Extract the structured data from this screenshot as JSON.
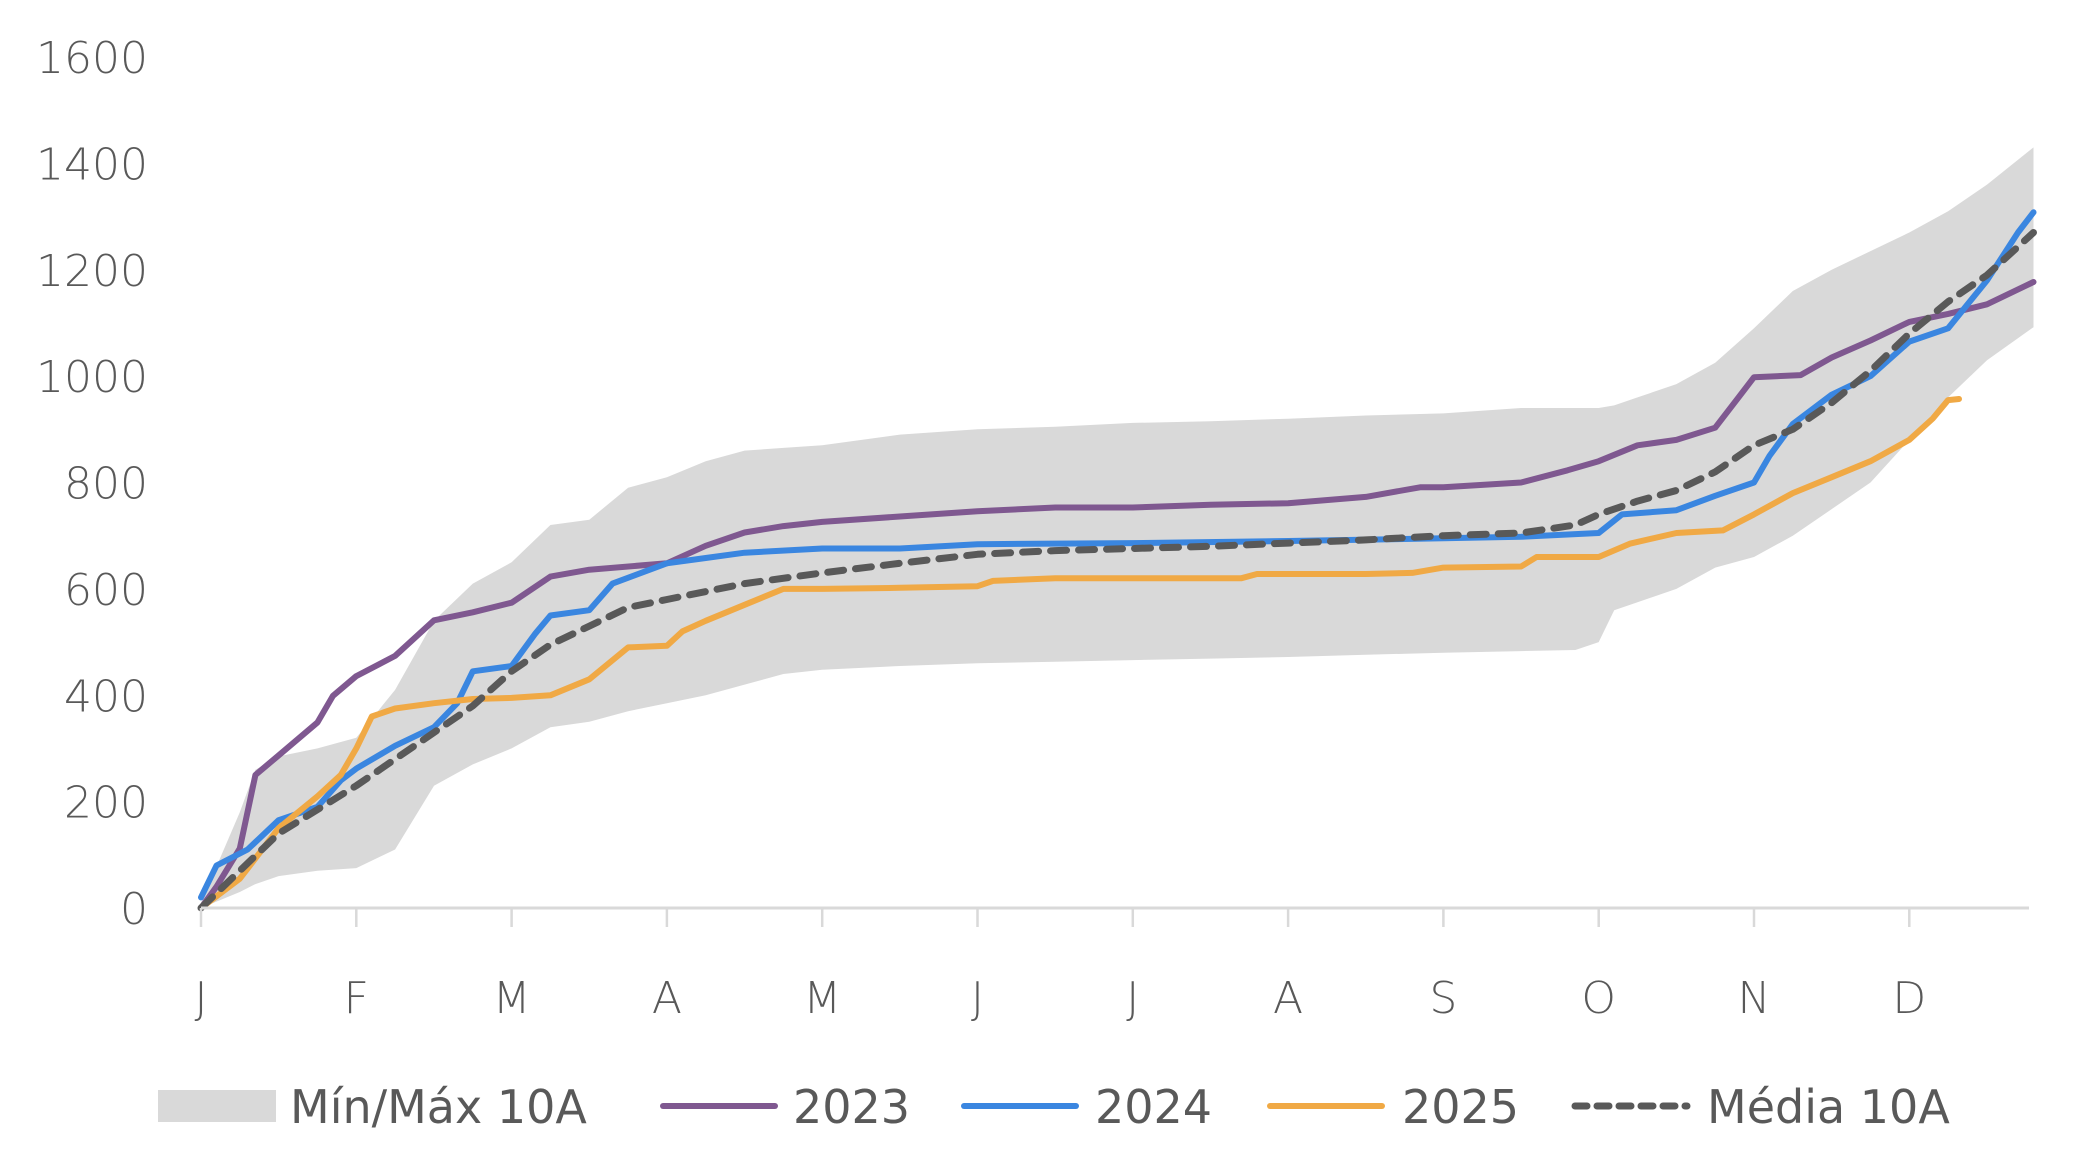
{
  "chart_data": {
    "type": "line",
    "title": "",
    "xlabel": "",
    "ylabel": "",
    "ylim": [
      0,
      1600
    ],
    "yticks": [
      0,
      200,
      400,
      600,
      800,
      1000,
      1200,
      1400,
      1600
    ],
    "ytick_labels": [
      "0",
      "200",
      "400",
      "600",
      "800",
      "1000",
      "1200",
      "1400",
      "1600"
    ],
    "xlim_months": [
      0,
      11.8
    ],
    "categories": [
      "J",
      "F",
      "M",
      "A",
      "M",
      "J",
      "J",
      "A",
      "S",
      "O",
      "N",
      "D"
    ],
    "grid": false,
    "legend_position": "bottom",
    "x_unit": "month index (0 = start of January)",
    "band": {
      "name": "Mín/Máx 10A",
      "color": "#d9d9d9",
      "x": [
        0,
        0.25,
        0.35,
        0.5,
        0.75,
        1.0,
        1.25,
        1.5,
        1.75,
        2.0,
        2.25,
        2.5,
        2.75,
        3.0,
        3.25,
        3.5,
        3.75,
        4.0,
        4.5,
        5.0,
        5.5,
        6.0,
        6.5,
        7.0,
        7.5,
        8.0,
        8.5,
        8.85,
        9.0,
        9.1,
        9.25,
        9.5,
        9.75,
        10.0,
        10.25,
        10.5,
        10.75,
        11.0,
        11.25,
        11.5,
        11.8
      ],
      "max": [
        10,
        180,
        260,
        285,
        300,
        320,
        410,
        540,
        610,
        650,
        720,
        730,
        790,
        810,
        840,
        860,
        865,
        870,
        890,
        900,
        905,
        912,
        915,
        920,
        926,
        930,
        940,
        940,
        940,
        945,
        960,
        985,
        1025,
        1090,
        1160,
        1200,
        1235,
        1270,
        1310,
        1360,
        1430
      ],
      "min": [
        0,
        30,
        45,
        60,
        70,
        75,
        110,
        230,
        270,
        300,
        340,
        350,
        370,
        385,
        400,
        420,
        440,
        448,
        455,
        460,
        463,
        466,
        469,
        472,
        476,
        480,
        483,
        485,
        500,
        560,
        575,
        600,
        640,
        660,
        700,
        750,
        800,
        880,
        960,
        1030,
        1092
      ]
    },
    "series": [
      {
        "name": "2023",
        "color": "#7f5890",
        "dashed": false,
        "x": [
          0,
          0.1,
          0.25,
          0.35,
          0.5,
          0.75,
          0.85,
          1.0,
          1.25,
          1.5,
          1.75,
          2.0,
          2.25,
          2.5,
          3.0,
          3.25,
          3.5,
          3.75,
          4.0,
          4.5,
          5.0,
          5.5,
          6.0,
          6.5,
          7.0,
          7.5,
          7.85,
          8.0,
          8.5,
          8.8,
          9.0,
          9.25,
          9.5,
          9.75,
          9.9,
          10.0,
          10.3,
          10.5,
          10.75,
          11.0,
          11.25,
          11.5,
          11.75,
          11.8
        ],
        "values": [
          0,
          40,
          112,
          250,
          287,
          349,
          399,
          436,
          474,
          541,
          556,
          574,
          623,
          636,
          648,
          681,
          706,
          718,
          726,
          736,
          746,
          753,
          753,
          758,
          761,
          773,
          791,
          791,
          800,
          823,
          840,
          870,
          880,
          903,
          960,
          998,
          1002,
          1035,
          1067,
          1102,
          1117,
          1135,
          1170,
          1177
        ]
      },
      {
        "name": "2024",
        "color": "#3a86e0",
        "dashed": false,
        "x": [
          0,
          0.1,
          0.3,
          0.5,
          0.75,
          0.9,
          1.0,
          1.25,
          1.5,
          1.65,
          1.75,
          2.0,
          2.15,
          2.25,
          2.5,
          2.65,
          3.0,
          3.25,
          3.5,
          4.0,
          4.5,
          5.0,
          6.0,
          7.0,
          8.0,
          8.5,
          9.0,
          9.15,
          9.5,
          9.75,
          10.0,
          10.1,
          10.25,
          10.5,
          10.75,
          11.0,
          11.25,
          11.5,
          11.7,
          11.8
        ],
        "values": [
          20,
          80,
          110,
          165,
          190,
          240,
          262,
          305,
          340,
          385,
          445,
          455,
          515,
          550,
          560,
          610,
          648,
          658,
          668,
          676,
          676,
          684,
          686,
          690,
          695,
          698,
          705,
          740,
          748,
          775,
          800,
          850,
          910,
          965,
          1000,
          1065,
          1090,
          1180,
          1270,
          1308
        ]
      },
      {
        "name": "2025",
        "color": "#f0a945",
        "dashed": false,
        "x": [
          0,
          0.25,
          0.5,
          0.75,
          0.9,
          1.0,
          1.1,
          1.25,
          1.5,
          1.75,
          2.0,
          2.25,
          2.5,
          2.75,
          3.0,
          3.1,
          3.25,
          3.5,
          3.75,
          4.0,
          4.5,
          5.0,
          5.1,
          5.5,
          6.0,
          6.7,
          6.8,
          7.5,
          7.8,
          8.0,
          8.5,
          8.6,
          9.0,
          9.2,
          9.5,
          9.8,
          10.0,
          10.25,
          10.5,
          10.75,
          11.0,
          11.15,
          11.25,
          11.32
        ],
        "values": [
          0,
          55,
          150,
          210,
          250,
          300,
          360,
          375,
          385,
          393,
          395,
          400,
          430,
          490,
          493,
          520,
          540,
          570,
          600,
          600,
          602,
          605,
          615,
          620,
          620,
          620,
          628,
          628,
          630,
          640,
          642,
          660,
          660,
          685,
          705,
          710,
          740,
          780,
          810,
          840,
          880,
          920,
          955,
          957
        ]
      },
      {
        "name": "Média 10A",
        "color": "#595959",
        "dashed": true,
        "x": [
          0,
          0.5,
          1.0,
          1.5,
          1.75,
          2.0,
          2.25,
          2.5,
          2.75,
          3.0,
          3.5,
          4.0,
          4.5,
          5.0,
          5.5,
          6.0,
          6.5,
          7.0,
          7.5,
          8.0,
          8.5,
          8.85,
          9.0,
          9.25,
          9.5,
          9.75,
          10.0,
          10.25,
          10.5,
          10.75,
          11.0,
          11.25,
          11.5,
          11.8
        ],
        "values": [
          0,
          140,
          230,
          330,
          380,
          445,
          495,
          530,
          565,
          580,
          610,
          630,
          648,
          665,
          672,
          676,
          680,
          686,
          692,
          700,
          705,
          720,
          740,
          765,
          785,
          820,
          870,
          900,
          950,
          1010,
          1080,
          1140,
          1190,
          1270
        ]
      }
    ],
    "legend": [
      {
        "label": "Mín/Máx 10A",
        "kind": "band",
        "color": "#d9d9d9"
      },
      {
        "label": "2023",
        "kind": "line",
        "color": "#7f5890"
      },
      {
        "label": "2024",
        "kind": "line",
        "color": "#3a86e0"
      },
      {
        "label": "2025",
        "kind": "line",
        "color": "#f0a945"
      },
      {
        "label": "Média 10A",
        "kind": "dashed",
        "color": "#595959"
      }
    ],
    "axis_color": "#d9d9d9",
    "text_color": "#595959"
  }
}
